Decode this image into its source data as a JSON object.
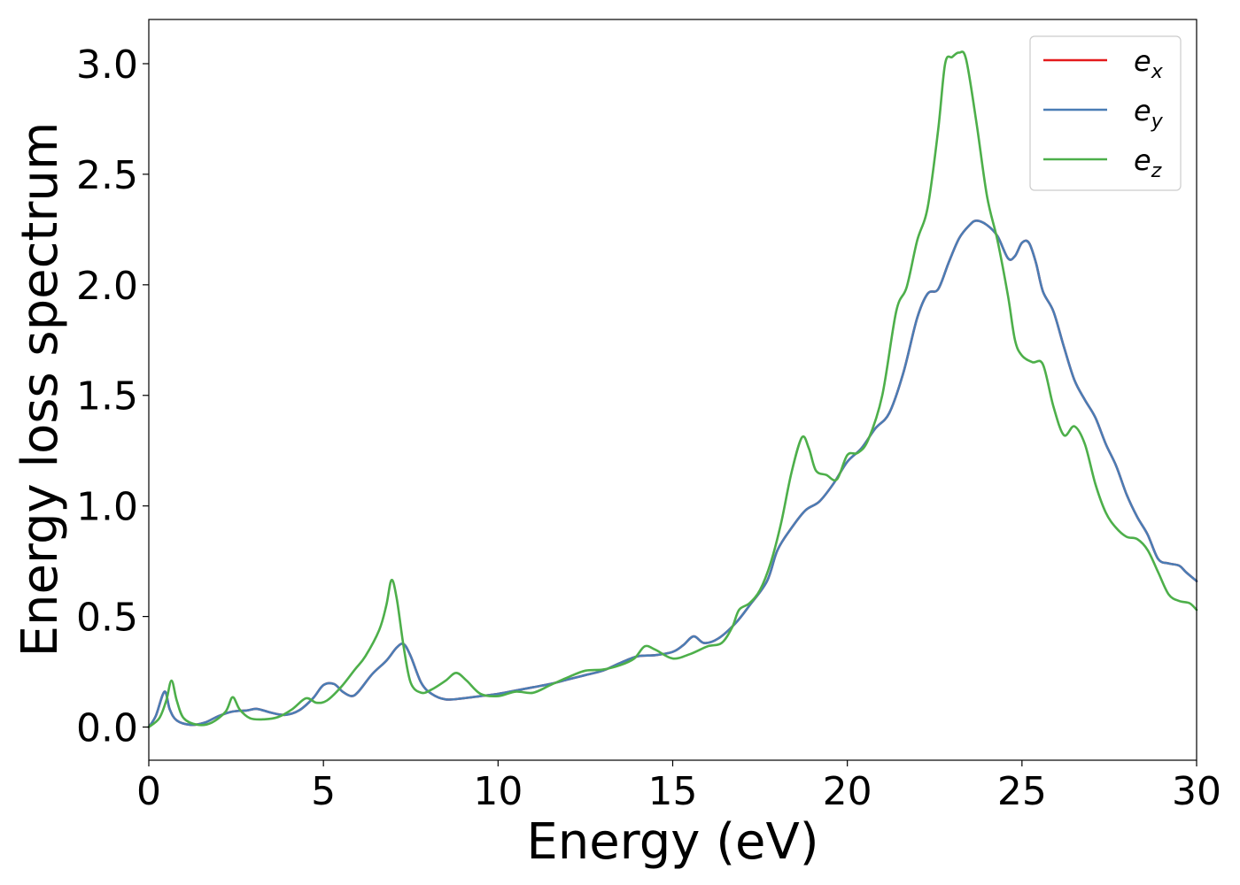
{
  "chart_data": {
    "type": "line",
    "xlabel": "Energy (eV)",
    "ylabel": "Energy loss spectrum",
    "xlim": [
      0,
      30
    ],
    "ylim": [
      -0.15,
      3.2
    ],
    "xticks": [
      0,
      5,
      10,
      15,
      20,
      25,
      30
    ],
    "xtick_labels": [
      "0",
      "5",
      "10",
      "15",
      "20",
      "25",
      "30"
    ],
    "yticks": [
      0.0,
      0.5,
      1.0,
      1.5,
      2.0,
      2.5,
      3.0
    ],
    "ytick_labels": [
      "0.0",
      "0.5",
      "1.0",
      "1.5",
      "2.0",
      "2.5",
      "3.0"
    ],
    "grid": false,
    "legend": "top-right",
    "series": [
      {
        "name": "e",
        "subscript": "x",
        "color": "#e41a1c",
        "points": [
          [
            0,
            0
          ],
          [
            0.2,
            0.05
          ],
          [
            0.45,
            0.16
          ],
          [
            0.6,
            0.08
          ],
          [
            0.8,
            0.03
          ],
          [
            1.2,
            0.01
          ],
          [
            1.6,
            0.02
          ],
          [
            2.0,
            0.05
          ],
          [
            2.4,
            0.07
          ],
          [
            2.8,
            0.075
          ],
          [
            3.1,
            0.082
          ],
          [
            3.5,
            0.065
          ],
          [
            3.9,
            0.055
          ],
          [
            4.3,
            0.075
          ],
          [
            4.7,
            0.13
          ],
          [
            5.0,
            0.19
          ],
          [
            5.3,
            0.195
          ],
          [
            5.55,
            0.16
          ],
          [
            5.8,
            0.14
          ],
          [
            6.0,
            0.16
          ],
          [
            6.4,
            0.24
          ],
          [
            6.8,
            0.3
          ],
          [
            7.1,
            0.36
          ],
          [
            7.3,
            0.375
          ],
          [
            7.5,
            0.32
          ],
          [
            7.8,
            0.2
          ],
          [
            8.1,
            0.15
          ],
          [
            8.5,
            0.125
          ],
          [
            9.0,
            0.13
          ],
          [
            9.5,
            0.14
          ],
          [
            10.0,
            0.15
          ],
          [
            10.5,
            0.165
          ],
          [
            11.0,
            0.18
          ],
          [
            11.5,
            0.195
          ],
          [
            12.0,
            0.215
          ],
          [
            12.5,
            0.235
          ],
          [
            13.0,
            0.255
          ],
          [
            13.5,
            0.29
          ],
          [
            14.0,
            0.32
          ],
          [
            14.5,
            0.325
          ],
          [
            15.0,
            0.34
          ],
          [
            15.3,
            0.37
          ],
          [
            15.6,
            0.41
          ],
          [
            15.9,
            0.38
          ],
          [
            16.3,
            0.4
          ],
          [
            16.8,
            0.47
          ],
          [
            17.2,
            0.55
          ],
          [
            17.7,
            0.66
          ],
          [
            18.0,
            0.8
          ],
          [
            18.4,
            0.9
          ],
          [
            18.8,
            0.98
          ],
          [
            19.2,
            1.02
          ],
          [
            19.6,
            1.1
          ],
          [
            20.0,
            1.2
          ],
          [
            20.4,
            1.26
          ],
          [
            20.8,
            1.35
          ],
          [
            21.2,
            1.42
          ],
          [
            21.6,
            1.6
          ],
          [
            22.0,
            1.85
          ],
          [
            22.3,
            1.96
          ],
          [
            22.6,
            1.98
          ],
          [
            22.9,
            2.1
          ],
          [
            23.2,
            2.21
          ],
          [
            23.5,
            2.27
          ],
          [
            23.7,
            2.29
          ],
          [
            24.0,
            2.27
          ],
          [
            24.3,
            2.22
          ],
          [
            24.6,
            2.12
          ],
          [
            24.8,
            2.13
          ],
          [
            25.0,
            2.19
          ],
          [
            25.2,
            2.19
          ],
          [
            25.4,
            2.1
          ],
          [
            25.6,
            1.97
          ],
          [
            25.9,
            1.88
          ],
          [
            26.2,
            1.72
          ],
          [
            26.5,
            1.57
          ],
          [
            26.8,
            1.48
          ],
          [
            27.1,
            1.4
          ],
          [
            27.4,
            1.28
          ],
          [
            27.7,
            1.18
          ],
          [
            28.0,
            1.05
          ],
          [
            28.3,
            0.95
          ],
          [
            28.6,
            0.87
          ],
          [
            28.9,
            0.76
          ],
          [
            29.2,
            0.74
          ],
          [
            29.5,
            0.73
          ],
          [
            29.7,
            0.7
          ],
          [
            30.0,
            0.66
          ]
        ]
      },
      {
        "name": "e",
        "subscript": "y",
        "color": "#4a7db5",
        "points": [
          [
            0,
            0
          ],
          [
            0.2,
            0.05
          ],
          [
            0.45,
            0.16
          ],
          [
            0.6,
            0.08
          ],
          [
            0.8,
            0.03
          ],
          [
            1.2,
            0.01
          ],
          [
            1.6,
            0.02
          ],
          [
            2.0,
            0.05
          ],
          [
            2.4,
            0.07
          ],
          [
            2.8,
            0.075
          ],
          [
            3.1,
            0.082
          ],
          [
            3.5,
            0.065
          ],
          [
            3.9,
            0.055
          ],
          [
            4.3,
            0.075
          ],
          [
            4.7,
            0.13
          ],
          [
            5.0,
            0.19
          ],
          [
            5.3,
            0.195
          ],
          [
            5.55,
            0.16
          ],
          [
            5.8,
            0.14
          ],
          [
            6.0,
            0.16
          ],
          [
            6.4,
            0.24
          ],
          [
            6.8,
            0.3
          ],
          [
            7.1,
            0.36
          ],
          [
            7.3,
            0.375
          ],
          [
            7.5,
            0.32
          ],
          [
            7.8,
            0.2
          ],
          [
            8.1,
            0.15
          ],
          [
            8.5,
            0.125
          ],
          [
            9.0,
            0.13
          ],
          [
            9.5,
            0.14
          ],
          [
            10.0,
            0.15
          ],
          [
            10.5,
            0.165
          ],
          [
            11.0,
            0.18
          ],
          [
            11.5,
            0.195
          ],
          [
            12.0,
            0.215
          ],
          [
            12.5,
            0.235
          ],
          [
            13.0,
            0.255
          ],
          [
            13.5,
            0.29
          ],
          [
            14.0,
            0.32
          ],
          [
            14.5,
            0.325
          ],
          [
            15.0,
            0.34
          ],
          [
            15.3,
            0.37
          ],
          [
            15.6,
            0.41
          ],
          [
            15.9,
            0.38
          ],
          [
            16.3,
            0.4
          ],
          [
            16.8,
            0.47
          ],
          [
            17.2,
            0.55
          ],
          [
            17.7,
            0.66
          ],
          [
            18.0,
            0.8
          ],
          [
            18.4,
            0.9
          ],
          [
            18.8,
            0.98
          ],
          [
            19.2,
            1.02
          ],
          [
            19.6,
            1.1
          ],
          [
            20.0,
            1.2
          ],
          [
            20.4,
            1.26
          ],
          [
            20.8,
            1.35
          ],
          [
            21.2,
            1.42
          ],
          [
            21.6,
            1.6
          ],
          [
            22.0,
            1.85
          ],
          [
            22.3,
            1.96
          ],
          [
            22.6,
            1.98
          ],
          [
            22.9,
            2.1
          ],
          [
            23.2,
            2.21
          ],
          [
            23.5,
            2.27
          ],
          [
            23.7,
            2.29
          ],
          [
            24.0,
            2.27
          ],
          [
            24.3,
            2.22
          ],
          [
            24.6,
            2.12
          ],
          [
            24.8,
            2.13
          ],
          [
            25.0,
            2.19
          ],
          [
            25.2,
            2.19
          ],
          [
            25.4,
            2.1
          ],
          [
            25.6,
            1.97
          ],
          [
            25.9,
            1.88
          ],
          [
            26.2,
            1.72
          ],
          [
            26.5,
            1.57
          ],
          [
            26.8,
            1.48
          ],
          [
            27.1,
            1.4
          ],
          [
            27.4,
            1.28
          ],
          [
            27.7,
            1.18
          ],
          [
            28.0,
            1.05
          ],
          [
            28.3,
            0.95
          ],
          [
            28.6,
            0.87
          ],
          [
            28.9,
            0.76
          ],
          [
            29.2,
            0.74
          ],
          [
            29.5,
            0.73
          ],
          [
            29.7,
            0.7
          ],
          [
            30.0,
            0.66
          ]
        ]
      },
      {
        "name": "e",
        "subscript": "z",
        "color": "#4daf4a",
        "points": [
          [
            0,
            0
          ],
          [
            0.3,
            0.04
          ],
          [
            0.5,
            0.12
          ],
          [
            0.65,
            0.21
          ],
          [
            0.8,
            0.12
          ],
          [
            1.0,
            0.04
          ],
          [
            1.4,
            0.01
          ],
          [
            1.8,
            0.02
          ],
          [
            2.2,
            0.07
          ],
          [
            2.4,
            0.135
          ],
          [
            2.6,
            0.08
          ],
          [
            2.9,
            0.04
          ],
          [
            3.3,
            0.035
          ],
          [
            3.7,
            0.045
          ],
          [
            4.1,
            0.08
          ],
          [
            4.5,
            0.13
          ],
          [
            4.8,
            0.11
          ],
          [
            5.1,
            0.12
          ],
          [
            5.5,
            0.18
          ],
          [
            5.9,
            0.26
          ],
          [
            6.2,
            0.32
          ],
          [
            6.6,
            0.44
          ],
          [
            6.8,
            0.55
          ],
          [
            6.95,
            0.665
          ],
          [
            7.1,
            0.58
          ],
          [
            7.3,
            0.36
          ],
          [
            7.5,
            0.2
          ],
          [
            7.8,
            0.155
          ],
          [
            8.1,
            0.17
          ],
          [
            8.5,
            0.21
          ],
          [
            8.8,
            0.245
          ],
          [
            9.1,
            0.21
          ],
          [
            9.5,
            0.15
          ],
          [
            10.0,
            0.14
          ],
          [
            10.5,
            0.16
          ],
          [
            11.0,
            0.155
          ],
          [
            11.5,
            0.19
          ],
          [
            12.0,
            0.225
          ],
          [
            12.5,
            0.255
          ],
          [
            13.0,
            0.26
          ],
          [
            13.5,
            0.28
          ],
          [
            13.9,
            0.31
          ],
          [
            14.2,
            0.365
          ],
          [
            14.5,
            0.35
          ],
          [
            15.0,
            0.31
          ],
          [
            15.5,
            0.33
          ],
          [
            16.0,
            0.365
          ],
          [
            16.4,
            0.38
          ],
          [
            16.7,
            0.45
          ],
          [
            16.9,
            0.53
          ],
          [
            17.2,
            0.56
          ],
          [
            17.5,
            0.62
          ],
          [
            17.8,
            0.74
          ],
          [
            18.1,
            0.92
          ],
          [
            18.4,
            1.15
          ],
          [
            18.7,
            1.31
          ],
          [
            18.9,
            1.26
          ],
          [
            19.1,
            1.16
          ],
          [
            19.4,
            1.14
          ],
          [
            19.7,
            1.12
          ],
          [
            20.0,
            1.23
          ],
          [
            20.3,
            1.24
          ],
          [
            20.6,
            1.3
          ],
          [
            21.0,
            1.5
          ],
          [
            21.4,
            1.88
          ],
          [
            21.7,
            1.99
          ],
          [
            22.0,
            2.2
          ],
          [
            22.3,
            2.35
          ],
          [
            22.6,
            2.7
          ],
          [
            22.8,
            3.0
          ],
          [
            23.0,
            3.03
          ],
          [
            23.2,
            3.05
          ],
          [
            23.4,
            3.02
          ],
          [
            23.7,
            2.73
          ],
          [
            24.0,
            2.4
          ],
          [
            24.3,
            2.2
          ],
          [
            24.6,
            1.95
          ],
          [
            24.8,
            1.75
          ],
          [
            25.0,
            1.68
          ],
          [
            25.3,
            1.65
          ],
          [
            25.6,
            1.64
          ],
          [
            25.9,
            1.45
          ],
          [
            26.2,
            1.32
          ],
          [
            26.5,
            1.36
          ],
          [
            26.8,
            1.28
          ],
          [
            27.1,
            1.1
          ],
          [
            27.4,
            0.97
          ],
          [
            27.7,
            0.9
          ],
          [
            28.0,
            0.86
          ],
          [
            28.3,
            0.85
          ],
          [
            28.6,
            0.8
          ],
          [
            28.9,
            0.7
          ],
          [
            29.2,
            0.6
          ],
          [
            29.5,
            0.57
          ],
          [
            29.8,
            0.56
          ],
          [
            30.0,
            0.53
          ]
        ]
      }
    ]
  }
}
